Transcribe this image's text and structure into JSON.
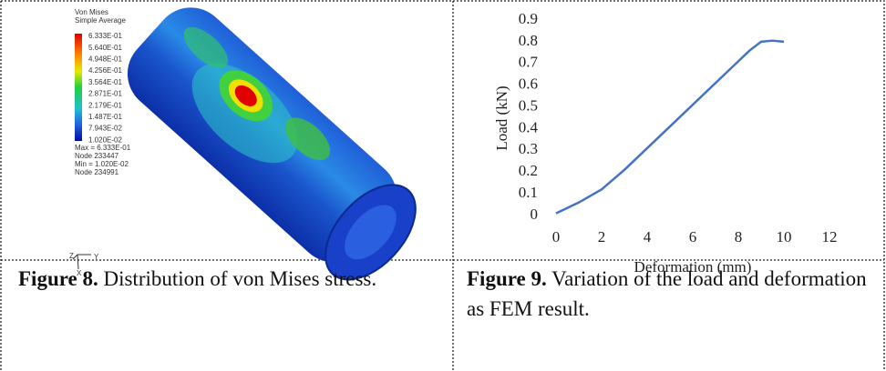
{
  "figure8": {
    "legend_title": [
      "Von Mises",
      "Simple Average"
    ],
    "legend_values": [
      "6.333E-01",
      "5.640E-01",
      "4.948E-01",
      "4.256E-01",
      "3.564E-01",
      "2.871E-01",
      "2.179E-01",
      "1.487E-01",
      "7.943E-02",
      "1.020E-02"
    ],
    "stats": [
      "Max = 6.333E-01",
      "Node 233447",
      "Min = 1.020E-02",
      "Node 234991"
    ],
    "axes": [
      "Z",
      "Y",
      "X"
    ],
    "caption_label": "Figure 8.",
    "caption_text": "Distribution of von Mises stress."
  },
  "chart_data": {
    "type": "line",
    "x_label": "Deformation (mm)",
    "y_label": "Load (kN)",
    "x": [
      0,
      1,
      2,
      3,
      4,
      5,
      6,
      7,
      8,
      8.5,
      9,
      9.5,
      10
    ],
    "series": [
      {
        "color": "#4472c4",
        "values": [
          0.01,
          0.06,
          0.12,
          0.21,
          0.31,
          0.41,
          0.51,
          0.61,
          0.71,
          0.76,
          0.8,
          0.805,
          0.8
        ]
      }
    ],
    "xlim": [
      0,
      12
    ],
    "xticks": [
      0,
      2,
      4,
      6,
      8,
      10,
      12
    ],
    "ylim": [
      0,
      0.9
    ],
    "yticks": [
      0,
      0.1,
      0.2,
      0.3,
      0.4,
      0.5,
      0.6,
      0.7,
      0.8,
      0.9
    ],
    "grid": false
  },
  "figure9": {
    "caption_label": "Figure 9.",
    "caption_text": "Variation of the load and deformation as FEM result."
  }
}
